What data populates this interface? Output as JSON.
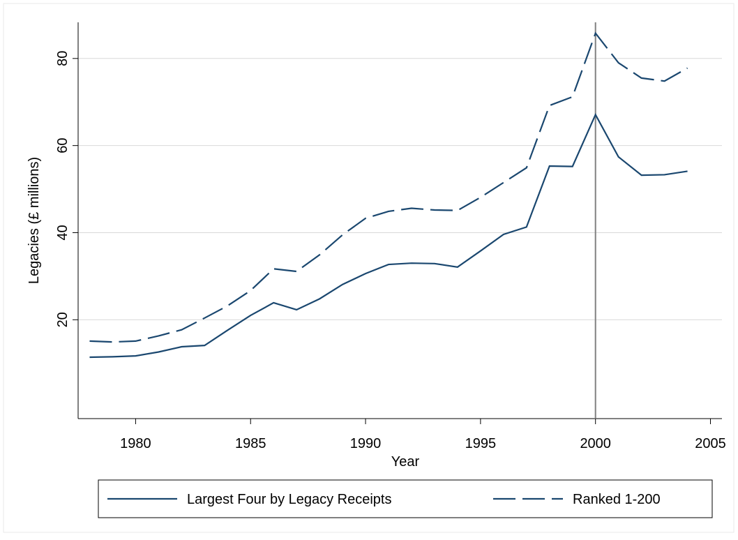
{
  "chart_data": {
    "type": "line",
    "x_label": "Year",
    "y_label": "Legacies (£ millions)",
    "x": [
      1978,
      1979,
      1980,
      1981,
      1982,
      1983,
      1984,
      1985,
      1986,
      1987,
      1988,
      1989,
      1990,
      1991,
      1992,
      1993,
      1994,
      1995,
      1996,
      1997,
      1998,
      1999,
      2000,
      2001,
      2002,
      2003,
      2004
    ],
    "series": [
      {
        "name": "Largest Four by Legacy Receipts",
        "color": "#1a476f",
        "dash": "solid",
        "values": [
          11.4,
          11.5,
          11.7,
          12.6,
          13.8,
          14.1,
          17.6,
          21.0,
          23.9,
          22.3,
          24.8,
          28.1,
          30.6,
          32.7,
          33.0,
          32.9,
          32.1,
          35.8,
          39.6,
          41.3,
          55.3,
          55.2,
          67.1,
          57.4,
          53.2,
          53.3,
          54.1
        ]
      },
      {
        "name": "Ranked 1-200",
        "color": "#1a476f",
        "dash": "dashed",
        "values": [
          15.1,
          14.9,
          15.1,
          16.3,
          17.7,
          20.4,
          23.2,
          26.7,
          31.7,
          31.1,
          34.9,
          39.5,
          43.3,
          44.9,
          45.6,
          45.2,
          45.1,
          48.1,
          51.5,
          54.9,
          69.2,
          71.2,
          85.8,
          79.0,
          75.5,
          74.8,
          77.8
        ]
      }
    ],
    "reference_line_x": 2000,
    "xlim": [
      1977.5,
      2005.5
    ],
    "xticks": [
      1980,
      1985,
      1990,
      1995,
      2000,
      2005
    ],
    "ylim": [
      -2.7,
      88.3
    ],
    "yticks": [
      20,
      40,
      60,
      80
    ],
    "grid": true,
    "legend_position": "bottom"
  }
}
